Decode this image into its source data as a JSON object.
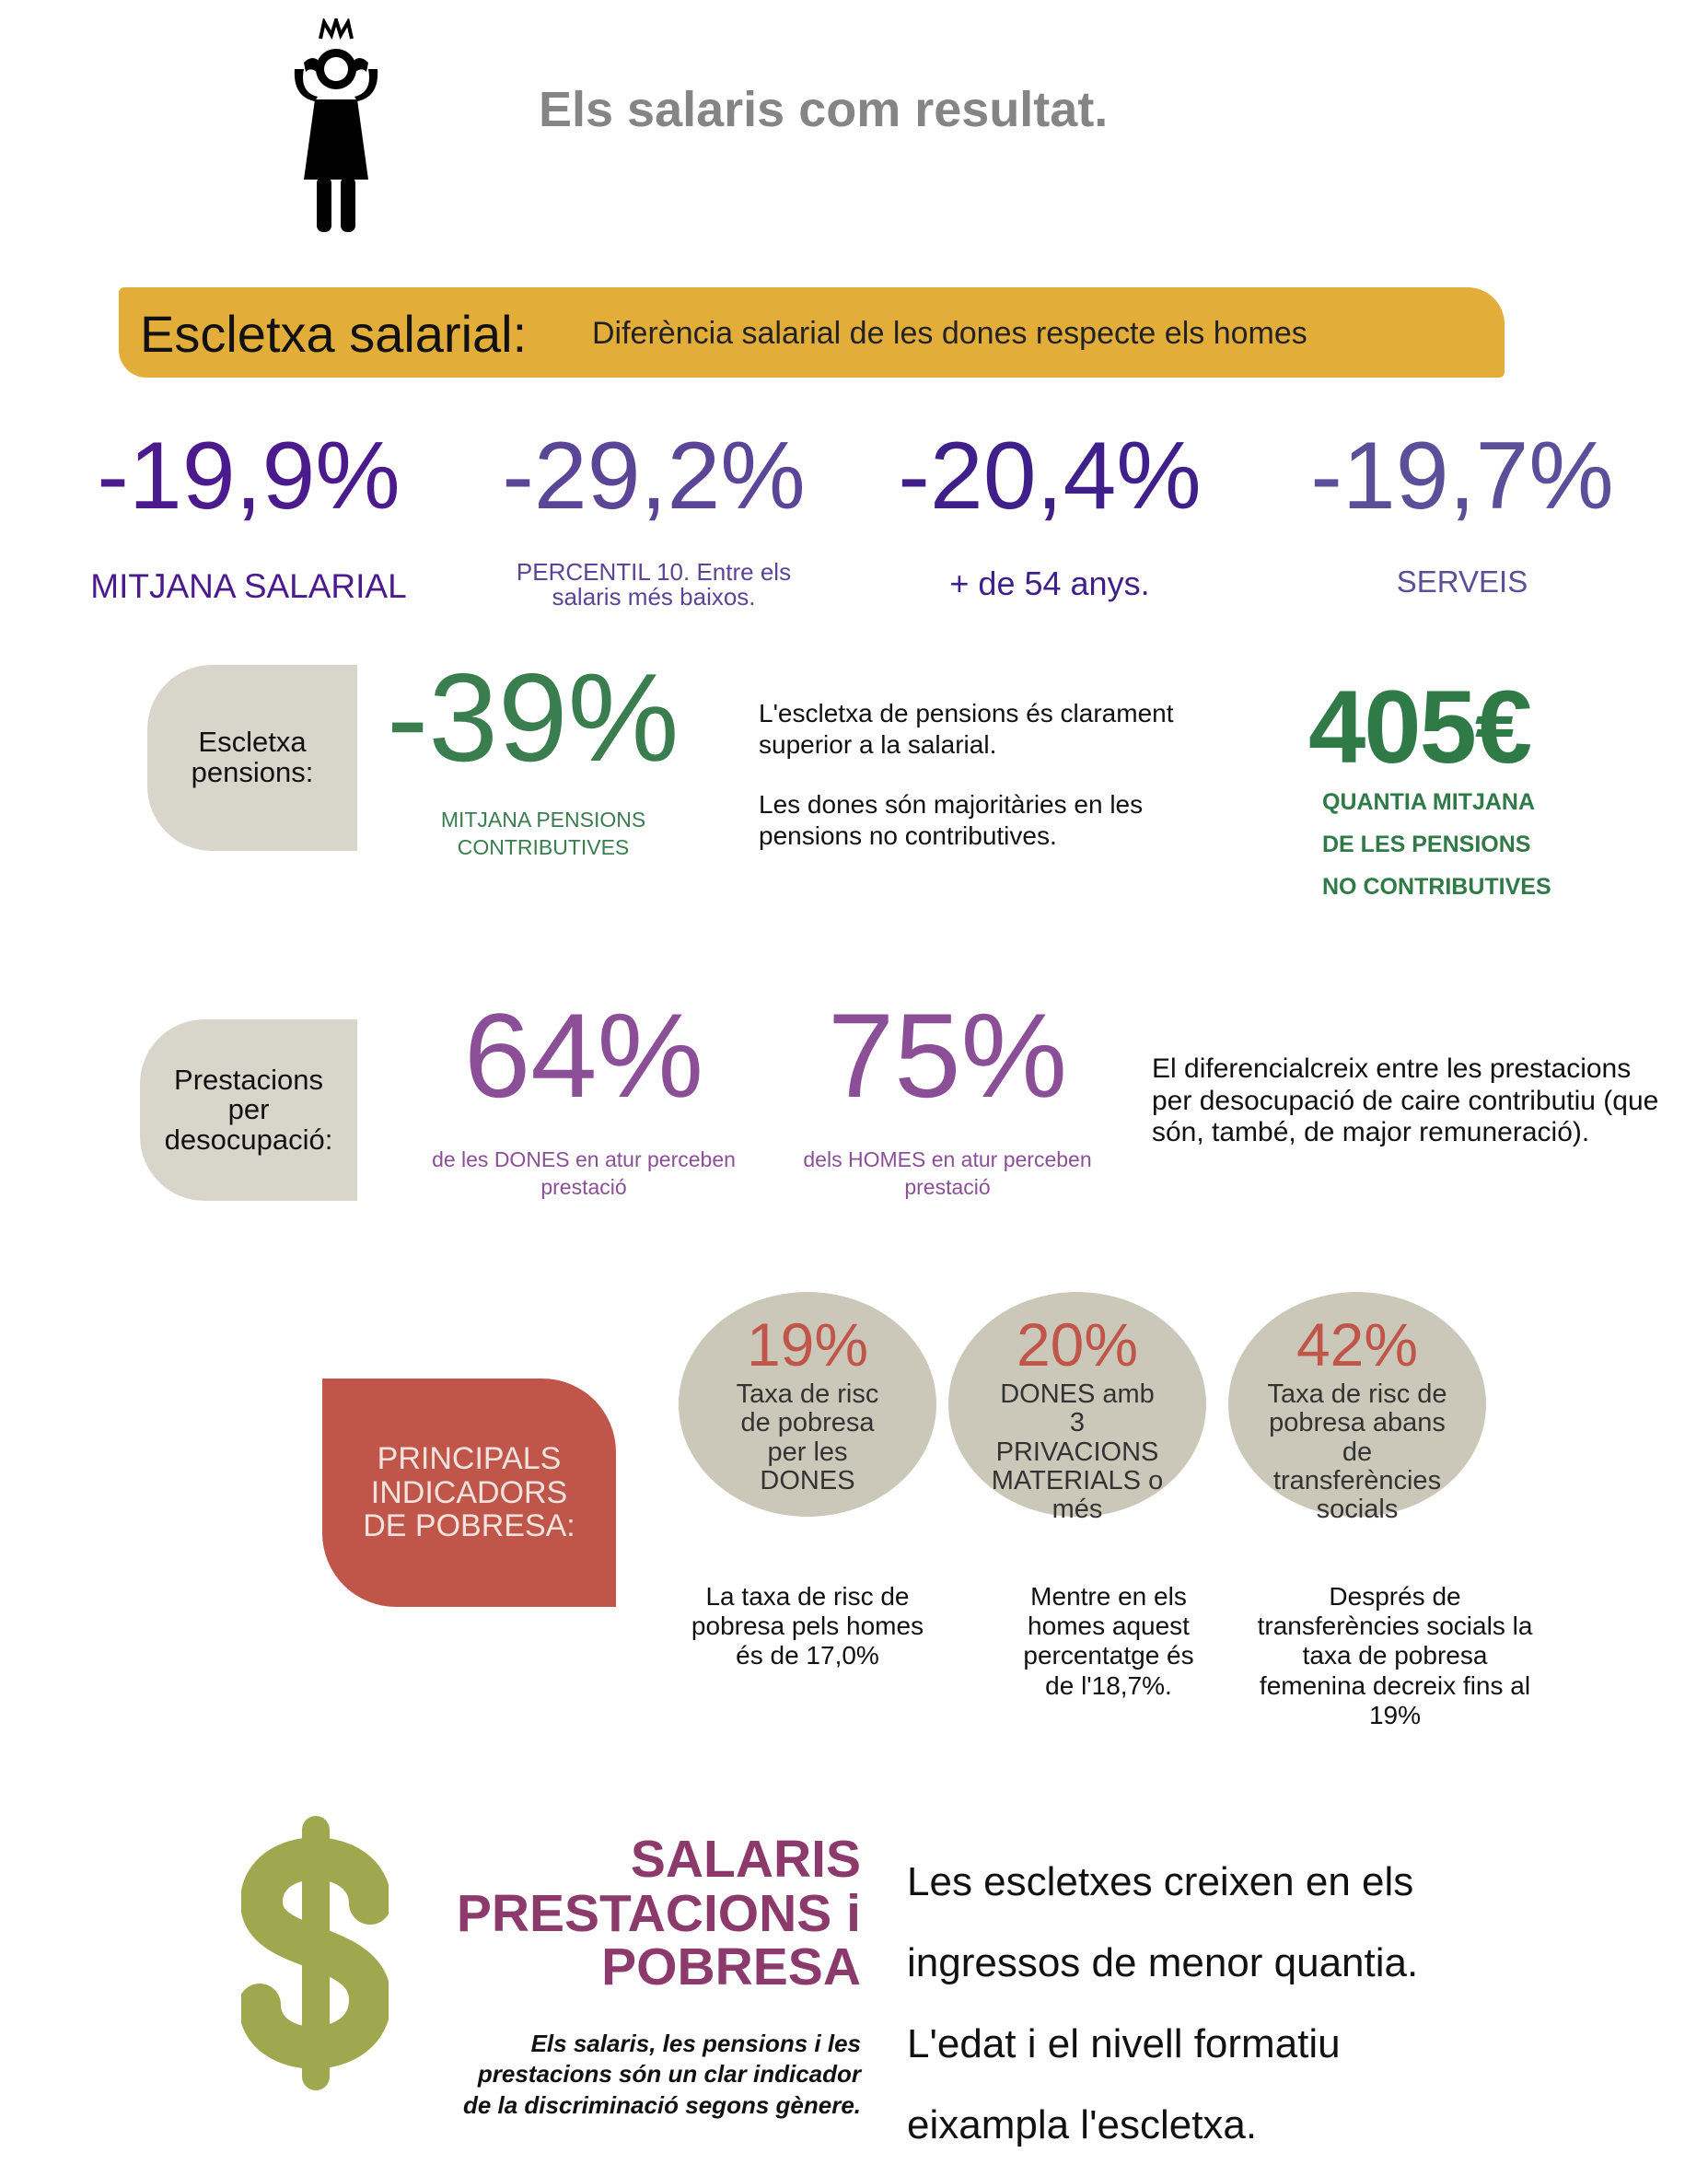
{
  "header": {
    "title": "Els salaris com resultat."
  },
  "salary_gap": {
    "title": "Escletxa salarial:",
    "subtitle": "Diferència salarial de les dones respecte els homes",
    "stats": [
      {
        "value": "-19,9%",
        "label": "MITJANA SALARIAL"
      },
      {
        "value": "-29,2%",
        "label": "PERCENTIL 10. Entre els salaris més baixos."
      },
      {
        "value": "-20,4%",
        "label": "+ de 54 anys."
      },
      {
        "value": "-19,7%",
        "label": "SERVEIS"
      }
    ]
  },
  "pensions": {
    "title": "Escletxa pensions:",
    "value": "-39%",
    "label": "MITJANA PENSIONS CONTRIBUTIVES",
    "text1": "L'escletxa de pensions és clarament superior a la salarial.",
    "text2": "Les dones són majoritàries en les pensions no contributives.",
    "amount": "405€",
    "amount_label": [
      "QUANTIA MITJANA",
      "DE LES PENSIONS",
      "NO CONTRIBUTIVES"
    ]
  },
  "unemployment": {
    "title": "Prestacions per desocupació:",
    "women_value": "64%",
    "women_label": "de les DONES en atur perceben prestació",
    "men_value": "75%",
    "men_label": "dels HOMES en atur perceben prestació",
    "text": "El diferencialcreix entre les prestacions per desocupació de caire contributiu (que són, també, de major remuneració)."
  },
  "poverty": {
    "title": "PRINCIPALS INDICADORS DE POBRESA:",
    "indicators": [
      {
        "value": "19%",
        "label": "Taxa de risc de pobresa per les DONES",
        "note": "La taxa de risc de pobresa pels homes és de 17,0%"
      },
      {
        "value": "20%",
        "label": "DONES amb 3 PRIVACIONS MATERIALS o més",
        "note": "Mentre en els homes aquest percentatge és de l'18,7%."
      },
      {
        "value": "42%",
        "label": "Taxa de risc de pobresa abans de transferències socials",
        "note": "Després de transferències socials la taxa de pobresa femenina decreix fins al 19%"
      }
    ]
  },
  "footer": {
    "title": [
      "SALARIS",
      "PRESTACIONS i",
      "POBRESA"
    ],
    "subtitle": "Els salaris, les pensions i les prestacions són un clar indicador de la discriminació segons gènere.",
    "text": [
      "Les escletxes creixen en els",
      "ingressos de menor quantia.",
      "L'edat i el nivell formatiu",
      "eixampla l'escletxa."
    ]
  }
}
